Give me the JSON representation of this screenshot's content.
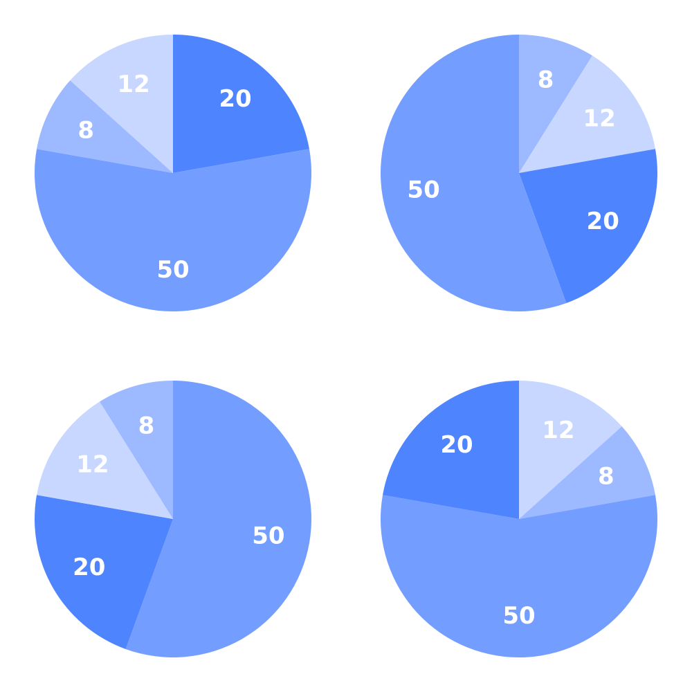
{
  "chart_data": [
    {
      "type": "pie",
      "slices": [
        {
          "value": 20,
          "label": "20",
          "color": "#4f84ff"
        },
        {
          "value": 50,
          "label": "50",
          "color": "#739dff"
        },
        {
          "value": 8,
          "label": "8",
          "color": "#9db9ff"
        },
        {
          "value": 12,
          "label": "12",
          "color": "#c7d7ff"
        }
      ],
      "start_angle_deg": 0,
      "direction": "clockwise"
    },
    {
      "type": "pie",
      "slices": [
        {
          "value": 8,
          "label": "8",
          "color": "#9db9ff"
        },
        {
          "value": 12,
          "label": "12",
          "color": "#c7d7ff"
        },
        {
          "value": 20,
          "label": "20",
          "color": "#4f84ff"
        },
        {
          "value": 50,
          "label": "50",
          "color": "#739dff"
        }
      ],
      "start_angle_deg": 0,
      "direction": "clockwise"
    },
    {
      "type": "pie",
      "slices": [
        {
          "value": 50,
          "label": "50",
          "color": "#739dff"
        },
        {
          "value": 20,
          "label": "20",
          "color": "#4f84ff"
        },
        {
          "value": 12,
          "label": "12",
          "color": "#c7d7ff"
        },
        {
          "value": 8,
          "label": "8",
          "color": "#9db9ff"
        }
      ],
      "start_angle_deg": 0,
      "direction": "clockwise"
    },
    {
      "type": "pie",
      "slices": [
        {
          "value": 12,
          "label": "12",
          "color": "#c7d7ff"
        },
        {
          "value": 8,
          "label": "8",
          "color": "#9db9ff"
        },
        {
          "value": 50,
          "label": "50",
          "color": "#739dff"
        },
        {
          "value": 20,
          "label": "20",
          "color": "#4f84ff"
        }
      ],
      "start_angle_deg": 0,
      "direction": "clockwise"
    }
  ]
}
